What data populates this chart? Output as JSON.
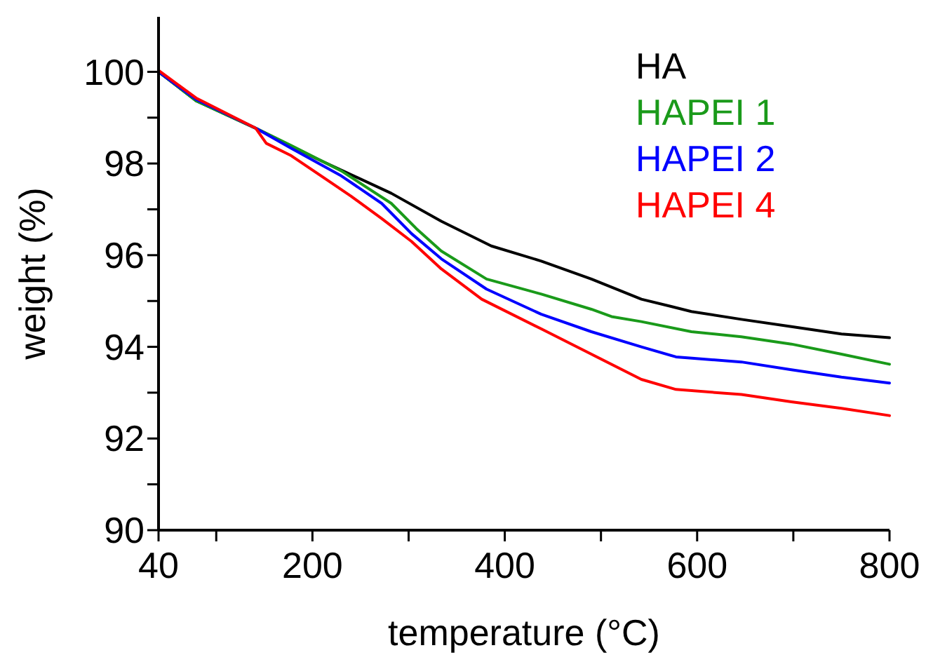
{
  "chart_data": {
    "type": "line",
    "xlabel": "temperature (°C)",
    "ylabel": "weight (%)",
    "xlim": [
      40,
      800
    ],
    "ylim": [
      90,
      101.2
    ],
    "xticks": [
      40,
      {
        "value": 100,
        "label": null
      },
      200,
      {
        "value": 300,
        "label": null
      },
      400,
      {
        "value": 500,
        "label": null
      },
      600,
      {
        "value": 700,
        "label": null
      },
      800
    ],
    "yticks": [
      90,
      {
        "value": 91,
        "label": null
      },
      92,
      {
        "value": 93,
        "label": null
      },
      94,
      {
        "value": 95,
        "label": null
      },
      96,
      {
        "value": 97,
        "label": null
      },
      98,
      {
        "value": 99,
        "label": null
      },
      100
    ],
    "grid": false,
    "legend": "top right",
    "series": [
      {
        "name": "HA",
        "color": "#000000",
        "x": [
          40,
          79,
          141,
          204,
          282,
          334,
          386,
          438,
          490,
          542,
          573,
          594,
          646,
          698,
          750,
          800
        ],
        "values": [
          100,
          99.37,
          98.77,
          98.11,
          97.35,
          96.74,
          96.2,
          95.87,
          95.48,
          95.04,
          94.88,
          94.77,
          94.6,
          94.44,
          94.28,
          94.2
        ]
      },
      {
        "name": "HAPEI 1",
        "color": "#1a9a1a",
        "x": [
          40,
          79,
          141,
          178,
          230,
          282,
          308,
          334,
          381,
          438,
          490,
          511,
          542,
          594,
          646,
          698,
          750,
          800
        ],
        "values": [
          100,
          99.37,
          98.77,
          98.39,
          97.84,
          97.13,
          96.58,
          96.09,
          95.48,
          95.15,
          94.82,
          94.66,
          94.55,
          94.33,
          94.22,
          94.06,
          93.84,
          93.62
        ]
      },
      {
        "name": "HAPEI 2",
        "color": "#0000ff",
        "x": [
          40,
          79,
          141,
          178,
          230,
          272,
          303,
          334,
          381,
          438,
          490,
          542,
          578,
          646,
          698,
          750,
          800
        ],
        "values": [
          100,
          99.4,
          98.77,
          98.33,
          97.73,
          97.13,
          96.47,
          95.92,
          95.26,
          94.71,
          94.33,
          94.0,
          93.78,
          93.67,
          93.5,
          93.34,
          93.21
        ]
      },
      {
        "name": "HAPEI 4",
        "color": "#ff0000",
        "x": [
          40,
          79,
          141,
          152,
          178,
          240,
          272,
          303,
          334,
          376,
          438,
          490,
          542,
          578,
          646,
          698,
          750,
          800
        ],
        "values": [
          100.03,
          99.43,
          98.77,
          98.44,
          98.17,
          97.29,
          96.8,
          96.3,
          95.7,
          95.04,
          94.39,
          93.84,
          93.29,
          93.07,
          92.96,
          92.8,
          92.66,
          92.5
        ]
      }
    ]
  }
}
